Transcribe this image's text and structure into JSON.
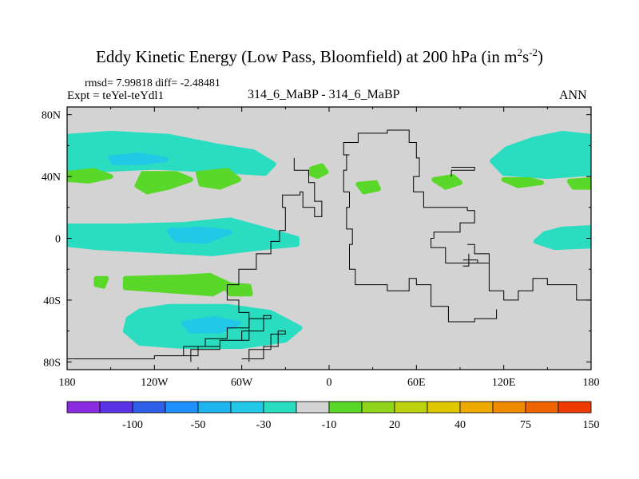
{
  "chart_data": {
    "type": "heatmap",
    "title": "Eddy Kinetic Energy (Low Pass, Bloomfield) at 200 hPa (in m",
    "title_unit_sup1": "2",
    "title_unit_s": "s",
    "title_unit_sup2": "-2",
    "title_close": ")",
    "stats_text": "rmsd= 7.99818 diff= -2.48481",
    "experiment_text": "Expt = teYel-teYdl1",
    "case_text": "314_6_MaBP - 314_6_MaBP",
    "season": "ANN",
    "x_axis": {
      "range": [
        -180,
        180
      ],
      "ticks": [
        -180,
        -120,
        -60,
        0,
        60,
        120,
        180
      ],
      "tick_labels": [
        "180",
        "120W",
        "60W",
        "0",
        "60E",
        "120E",
        "180"
      ]
    },
    "y_axis": {
      "range": [
        -85,
        85
      ],
      "ticks": [
        80,
        40,
        0,
        -40,
        -80
      ],
      "tick_labels": [
        "80N",
        "40N",
        "0",
        "40S",
        "80S"
      ]
    },
    "colorbar": {
      "colors": [
        "#8a2be2",
        "#5b32e6",
        "#2f5ee8",
        "#1e90ff",
        "#1eb4f0",
        "#22c8e6",
        "#2adcc0",
        "#d3d3d3",
        "#5ad82a",
        "#90d41c",
        "#bcd20e",
        "#e0c800",
        "#eeaa00",
        "#f08a00",
        "#f06400",
        "#ee3c00"
      ],
      "labels": [
        {
          "text": "-100",
          "after_box": 2
        },
        {
          "text": "-50",
          "after_box": 4
        },
        {
          "text": "-30",
          "after_box": 6
        },
        {
          "text": "-10",
          "after_box": 8
        },
        {
          "text": "20",
          "after_box": 10
        },
        {
          "text": "40",
          "after_box": 12
        },
        {
          "text": "75",
          "after_box": 14
        },
        {
          "text": "150",
          "after_box": 16
        }
      ]
    },
    "background_value_color": "#d3d3d3",
    "regions": [
      {
        "name": "band-north-west",
        "level": "-10",
        "color": "#2adcc0",
        "lonlat": [
          [
            -180,
            66
          ],
          [
            -150,
            68
          ],
          [
            -110,
            66
          ],
          [
            -78,
            60
          ],
          [
            -52,
            56
          ],
          [
            -38,
            48
          ],
          [
            -44,
            42
          ],
          [
            -80,
            44
          ],
          [
            -120,
            46
          ],
          [
            -165,
            44
          ],
          [
            -180,
            44
          ]
        ]
      },
      {
        "name": "band-north-west-core",
        "level": "-30",
        "color": "#22c8e6",
        "lonlat": [
          [
            -150,
            52
          ],
          [
            -130,
            54
          ],
          [
            -112,
            51
          ],
          [
            -128,
            49
          ],
          [
            -148,
            49
          ]
        ]
      },
      {
        "name": "band-north-east",
        "level": "-10",
        "color": "#2adcc0",
        "lonlat": [
          [
            180,
            66
          ],
          [
            160,
            68
          ],
          [
            140,
            64
          ],
          [
            122,
            58
          ],
          [
            112,
            50
          ],
          [
            120,
            42
          ],
          [
            150,
            40
          ],
          [
            180,
            42
          ]
        ]
      },
      {
        "name": "band-equator-west",
        "level": "-10",
        "color": "#2adcc0",
        "lonlat": [
          [
            -180,
            8
          ],
          [
            -140,
            8
          ],
          [
            -100,
            9
          ],
          [
            -68,
            12
          ],
          [
            -45,
            6
          ],
          [
            -22,
            0
          ],
          [
            -22,
            -4
          ],
          [
            -45,
            -6
          ],
          [
            -80,
            -10
          ],
          [
            -120,
            -8
          ],
          [
            -160,
            -6
          ],
          [
            -180,
            -4
          ]
        ]
      },
      {
        "name": "band-equator-west-core",
        "level": "-30",
        "color": "#22c8e6",
        "lonlat": [
          [
            -110,
            5
          ],
          [
            -88,
            6
          ],
          [
            -68,
            4
          ],
          [
            -85,
            -2
          ],
          [
            -105,
            -1
          ]
        ]
      },
      {
        "name": "band-equator-east",
        "level": "-10",
        "color": "#2adcc0",
        "lonlat": [
          [
            180,
            7
          ],
          [
            160,
            6
          ],
          [
            148,
            3
          ],
          [
            142,
            -2
          ],
          [
            155,
            -6
          ],
          [
            180,
            -5
          ]
        ]
      },
      {
        "name": "band-south-west",
        "level": "-10",
        "color": "#2adcc0",
        "lonlat": [
          [
            -130,
            -47
          ],
          [
            -110,
            -44
          ],
          [
            -70,
            -44
          ],
          [
            -40,
            -48
          ],
          [
            -20,
            -58
          ],
          [
            -30,
            -66
          ],
          [
            -60,
            -70
          ],
          [
            -100,
            -70
          ],
          [
            -130,
            -68
          ],
          [
            -140,
            -60
          ],
          [
            -138,
            -52
          ]
        ]
      },
      {
        "name": "band-south-west-core",
        "level": "-30",
        "color": "#22c8e6",
        "lonlat": [
          [
            -100,
            -55
          ],
          [
            -80,
            -52
          ],
          [
            -62,
            -55
          ],
          [
            -75,
            -60
          ],
          [
            -95,
            -60
          ]
        ]
      },
      {
        "name": "patch-north-1",
        "level": "20",
        "color": "#5ad82a",
        "lonlat": [
          [
            -180,
            42
          ],
          [
            -162,
            44
          ],
          [
            -150,
            40
          ],
          [
            -165,
            37
          ],
          [
            -180,
            38
          ]
        ]
      },
      {
        "name": "patch-north-2",
        "level": "20",
        "color": "#5ad82a",
        "lonlat": [
          [
            -128,
            42
          ],
          [
            -105,
            42
          ],
          [
            -95,
            38
          ],
          [
            -110,
            33
          ],
          [
            -125,
            30
          ],
          [
            -132,
            34
          ]
        ]
      },
      {
        "name": "patch-north-3",
        "level": "20",
        "color": "#5ad82a",
        "lonlat": [
          [
            -90,
            42
          ],
          [
            -70,
            44
          ],
          [
            -62,
            38
          ],
          [
            -75,
            33
          ],
          [
            -88,
            35
          ]
        ]
      },
      {
        "name": "patch-north-4",
        "level": "20",
        "color": "#5ad82a",
        "lonlat": [
          [
            -12,
            45
          ],
          [
            -5,
            47
          ],
          [
            -2,
            43
          ],
          [
            -8,
            40
          ],
          [
            -13,
            42
          ]
        ]
      },
      {
        "name": "patch-north-5",
        "level": "20",
        "color": "#5ad82a",
        "lonlat": [
          [
            20,
            35
          ],
          [
            32,
            36
          ],
          [
            34,
            32
          ],
          [
            24,
            30
          ]
        ]
      },
      {
        "name": "patch-north-6",
        "level": "20",
        "color": "#5ad82a",
        "lonlat": [
          [
            72,
            38
          ],
          [
            85,
            40
          ],
          [
            90,
            36
          ],
          [
            80,
            33
          ]
        ]
      },
      {
        "name": "patch-north-7",
        "level": "20",
        "color": "#5ad82a",
        "lonlat": [
          [
            120,
            38
          ],
          [
            138,
            38
          ],
          [
            146,
            36
          ],
          [
            130,
            34
          ]
        ]
      },
      {
        "name": "patch-north-8",
        "level": "20",
        "color": "#5ad82a",
        "lonlat": [
          [
            165,
            37
          ],
          [
            180,
            38
          ],
          [
            180,
            33
          ],
          [
            168,
            33
          ]
        ]
      },
      {
        "name": "patch-south-1",
        "level": "20",
        "color": "#5ad82a",
        "lonlat": [
          [
            -160,
            -26
          ],
          [
            -153,
            -26
          ],
          [
            -155,
            -31
          ],
          [
            -160,
            -30
          ]
        ]
      },
      {
        "name": "patch-south-2",
        "level": "20",
        "color": "#5ad82a",
        "lonlat": [
          [
            -140,
            -26
          ],
          [
            -100,
            -25
          ],
          [
            -82,
            -24
          ],
          [
            -68,
            -30
          ],
          [
            -80,
            -36
          ],
          [
            -110,
            -34
          ],
          [
            -140,
            -32
          ]
        ]
      },
      {
        "name": "patch-south-3",
        "level": "20",
        "color": "#5ad82a",
        "lonlat": [
          [
            -72,
            -30
          ],
          [
            -55,
            -31
          ],
          [
            -54,
            -36
          ],
          [
            -68,
            -36
          ]
        ]
      }
    ],
    "coastlines": [
      {
        "name": "continent-west",
        "lonlat": [
          [
            -180,
            -78
          ],
          [
            -120,
            -76
          ],
          [
            -100,
            -70
          ],
          [
            -85,
            -65
          ],
          [
            -70,
            -58
          ],
          [
            -55,
            -48
          ],
          [
            -62,
            -40
          ],
          [
            -70,
            -30
          ],
          [
            -62,
            -20
          ],
          [
            -50,
            -10
          ],
          [
            -40,
            -2
          ],
          [
            -34,
            5
          ],
          [
            -30,
            20
          ],
          [
            -32,
            28
          ],
          [
            -20,
            30
          ],
          [
            -18,
            20
          ],
          [
            -10,
            14
          ],
          [
            -5,
            24
          ],
          [
            -10,
            36
          ],
          [
            -14,
            44
          ],
          [
            -24,
            52
          ]
        ]
      },
      {
        "name": "continent-east",
        "lonlat": [
          [
            14,
            54
          ],
          [
            10,
            62
          ],
          [
            20,
            68
          ],
          [
            40,
            70
          ],
          [
            55,
            62
          ],
          [
            60,
            52
          ],
          [
            62,
            40
          ],
          [
            58,
            30
          ],
          [
            65,
            20
          ],
          [
            95,
            18
          ],
          [
            100,
            10
          ],
          [
            90,
            4
          ],
          [
            72,
            0
          ],
          [
            70,
            -6
          ],
          [
            80,
            -16
          ],
          [
            110,
            -34
          ],
          [
            120,
            -40
          ],
          [
            130,
            -34
          ],
          [
            140,
            -26
          ],
          [
            150,
            -30
          ],
          [
            170,
            -40
          ],
          [
            180,
            -56
          ]
        ]
      },
      {
        "name": "coast-inner-east",
        "lonlat": [
          [
            14,
            54
          ],
          [
            12,
            44
          ],
          [
            10,
            30
          ],
          [
            14,
            20
          ],
          [
            12,
            6
          ],
          [
            16,
            -4
          ],
          [
            14,
            -20
          ],
          [
            18,
            -30
          ],
          [
            40,
            -34
          ],
          [
            55,
            -26
          ],
          [
            60,
            -30
          ],
          [
            70,
            -44
          ],
          [
            82,
            -54
          ],
          [
            100,
            -52
          ],
          [
            115,
            -46
          ]
        ]
      },
      {
        "name": "island-north",
        "lonlat": [
          [
            84,
            46
          ],
          [
            100,
            46
          ],
          [
            100,
            44
          ],
          [
            88,
            44
          ],
          [
            84,
            40
          ]
        ]
      },
      {
        "name": "island-peninsula",
        "lonlat": [
          [
            95,
            -4
          ],
          [
            100,
            -10
          ],
          [
            110,
            -16
          ],
          [
            102,
            -14
          ],
          [
            96,
            -10
          ]
        ]
      },
      {
        "name": "island-small",
        "lonlat": [
          [
            92,
            -14
          ],
          [
            96,
            -14
          ],
          [
            96,
            -18
          ],
          [
            92,
            -18
          ]
        ]
      },
      {
        "name": "coast-south-strips",
        "lonlat": [
          [
            -100,
            -76
          ],
          [
            -90,
            -70
          ],
          [
            -75,
            -66
          ],
          [
            -60,
            -60
          ],
          [
            -45,
            -50
          ],
          [
            -40,
            -52
          ],
          [
            -55,
            -66
          ],
          [
            -75,
            -72
          ],
          [
            -95,
            -80
          ]
        ]
      },
      {
        "name": "coast-south-inner",
        "lonlat": [
          [
            -60,
            -78
          ],
          [
            -45,
            -70
          ],
          [
            -35,
            -60
          ],
          [
            -30,
            -62
          ],
          [
            -40,
            -72
          ],
          [
            -55,
            -80
          ]
        ]
      }
    ]
  }
}
